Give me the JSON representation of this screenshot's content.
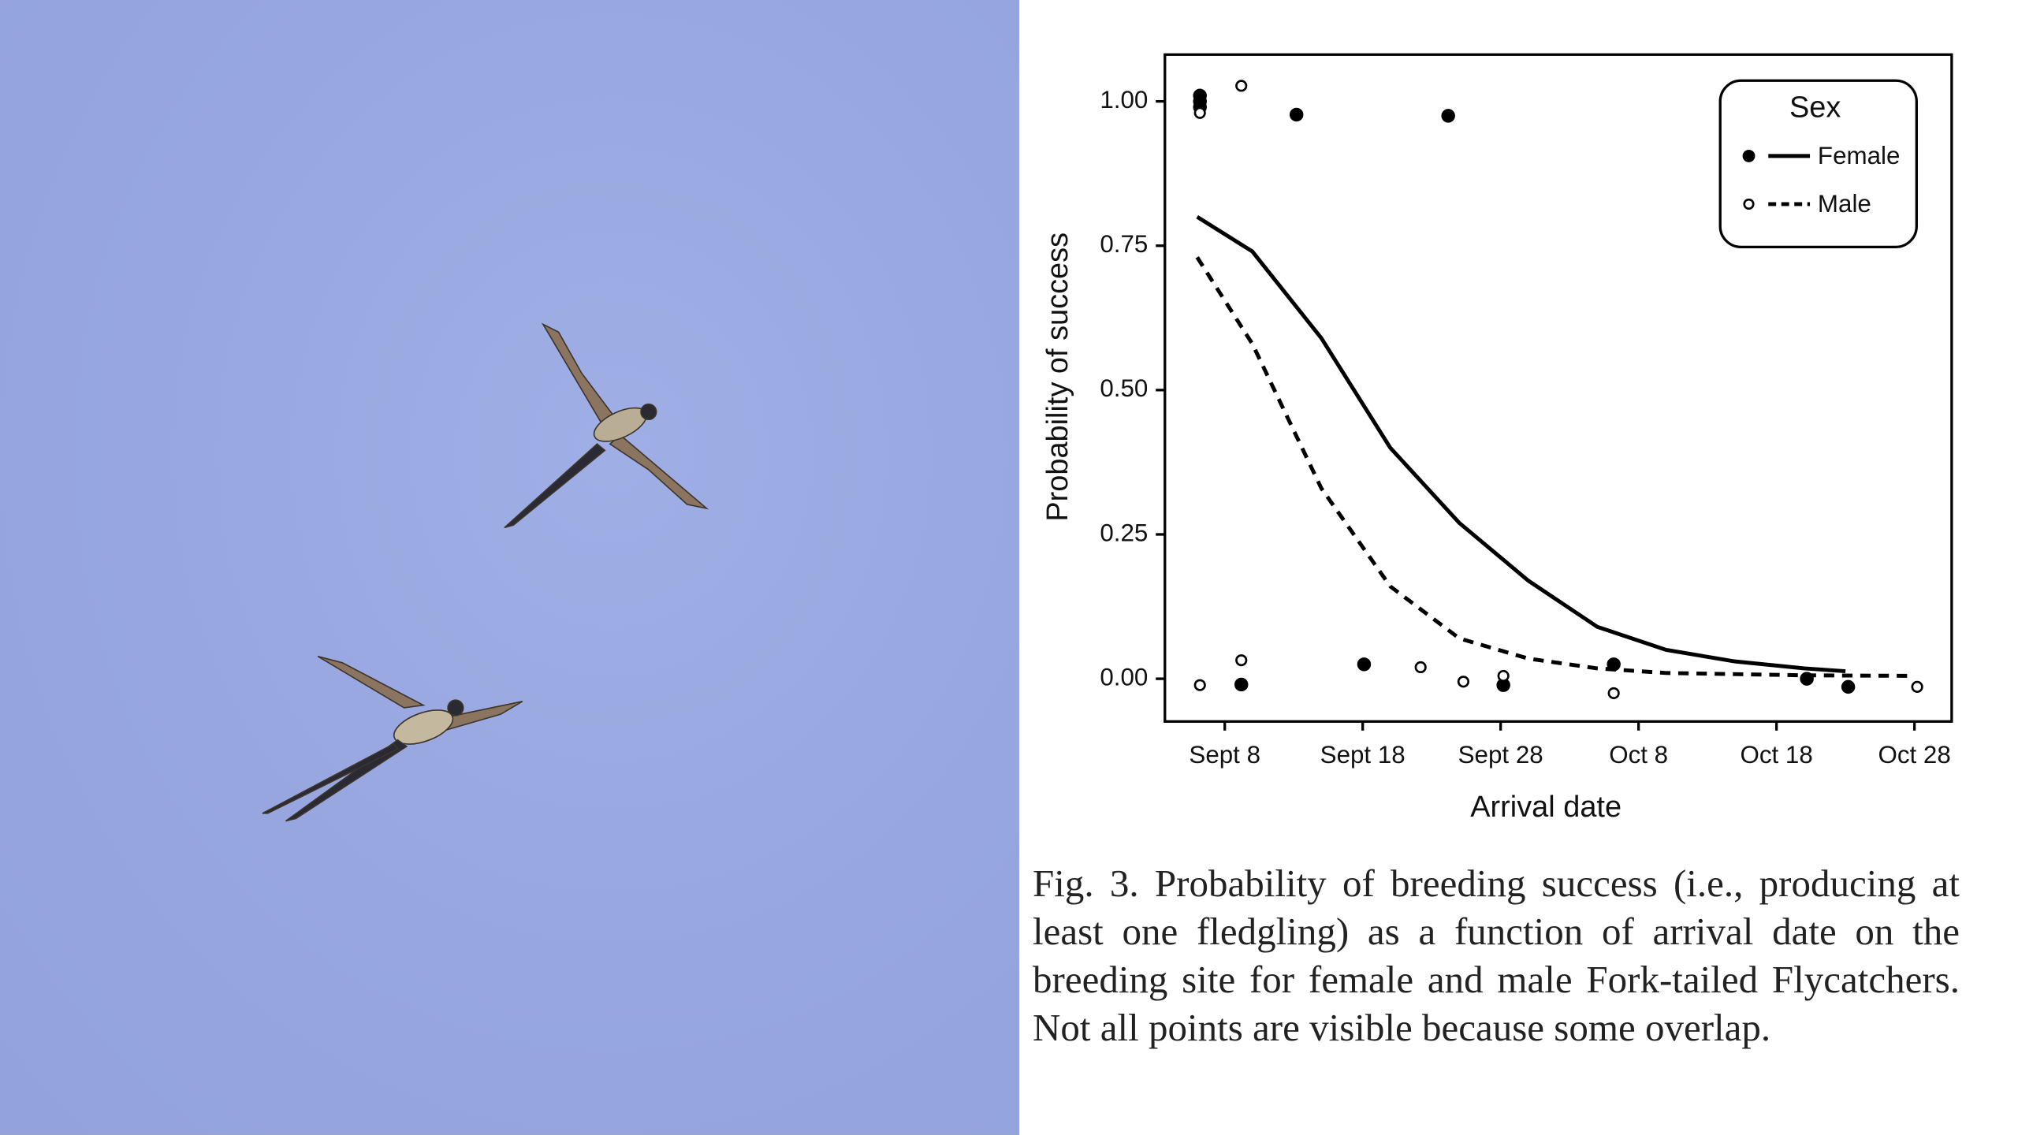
{
  "chart_data": {
    "type": "scatter",
    "xlabel": "Arrival date",
    "ylabel": "Probability of success",
    "xlim": [
      3.66,
      60.7
    ],
    "ylim": [
      -0.074,
      1.081
    ],
    "xticks": [
      {
        "value": 8,
        "label": "Sept 8"
      },
      {
        "value": 18,
        "label": "Sept 18"
      },
      {
        "value": 28,
        "label": "Sept 28"
      },
      {
        "value": 38,
        "label": "Oct 8"
      },
      {
        "value": 48,
        "label": "Oct 18"
      },
      {
        "value": 58,
        "label": "Oct 28"
      }
    ],
    "yticks": [
      {
        "value": 0,
        "label": "0.00"
      },
      {
        "value": 0.25,
        "label": "0.25"
      },
      {
        "value": 0.5,
        "label": "0.50"
      },
      {
        "value": 0.75,
        "label": "0.75"
      },
      {
        "value": 1,
        "label": "1.00"
      }
    ],
    "grid": false,
    "legend_title": "Sex",
    "legend_position": "upper right",
    "series": [
      {
        "name": "Female",
        "color": "#000000",
        "marker": "filled",
        "line": "solid",
        "x": [
          6.2,
          6.2,
          6.2,
          13.2,
          24.2,
          9.2,
          18.1,
          28.2,
          36.2,
          50.2,
          53.2
        ],
        "values": [
          1.01,
          1.0,
          0.99,
          0.977,
          0.975,
          -0.01,
          0.025,
          -0.011,
          0.025,
          0.0,
          -0.014
        ]
      },
      {
        "name": "Male",
        "color": "#000000",
        "marker": "open",
        "line": "dashed",
        "x": [
          6.2,
          6.2,
          9.2,
          9.2,
          22.2,
          25.3,
          28.2,
          36.2,
          58.2
        ],
        "values": [
          0.98,
          -0.011,
          1.027,
          0.032,
          0.02,
          -0.005,
          0.005,
          -0.025,
          -0.014
        ]
      }
    ],
    "fits": [
      {
        "x": [
          6,
          10,
          15,
          20,
          25,
          30,
          35,
          40,
          45,
          50,
          53
        ],
        "values": [
          0.8,
          0.74,
          0.59,
          0.4,
          0.27,
          0.17,
          0.09,
          0.05,
          0.03,
          0.018,
          0.013
        ]
      },
      {
        "x": [
          6,
          10,
          15,
          20,
          25,
          30,
          35,
          40,
          50,
          58
        ],
        "values": [
          0.73,
          0.58,
          0.33,
          0.16,
          0.07,
          0.035,
          0.018,
          0.01,
          0.006,
          0.005
        ]
      }
    ]
  },
  "caption": "Fig. 3. Probability of breeding success (i.e., producing at least one fledgling) as a function of arrival date on the breeding site for female and male Fork-tailed Flycatchers. Not all points are visible because some overlap."
}
